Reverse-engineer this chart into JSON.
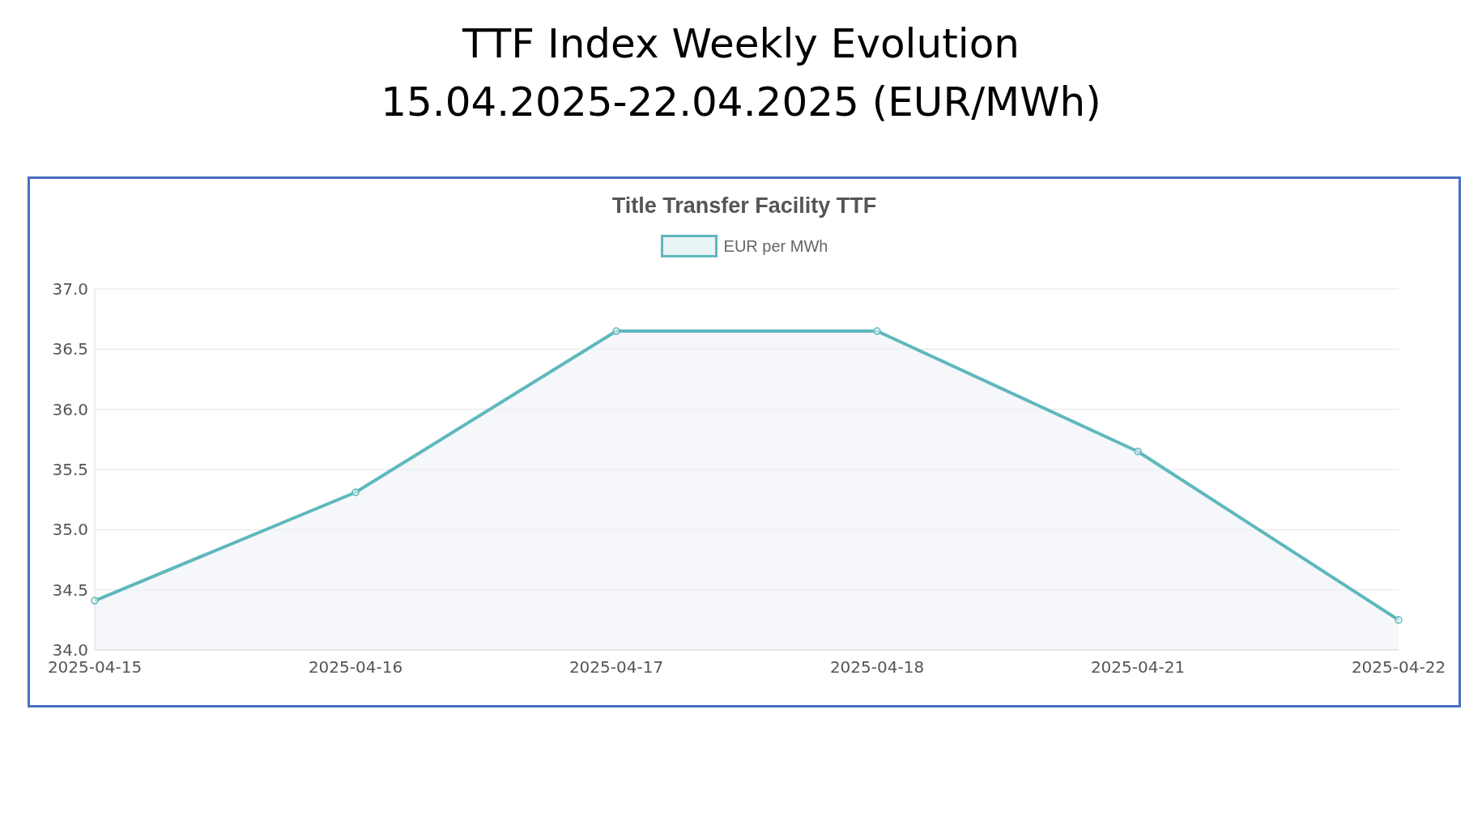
{
  "chart_data": {
    "type": "area",
    "title": "TTF Index Weekly Evolution\n15.04.2025-22.04.2025 (EUR/MWh)",
    "subtitle": "Title Transfer Facility TTF",
    "categories": [
      "2025-04-15",
      "2025-04-16",
      "2025-04-17",
      "2025-04-18",
      "2025-04-21",
      "2025-04-22"
    ],
    "series": [
      {
        "name": "EUR per MWh",
        "color": "#5fb8bd",
        "values": [
          34.41,
          35.31,
          36.65,
          36.65,
          35.65,
          34.25
        ]
      }
    ],
    "ylim": [
      34.0,
      37.0
    ],
    "yticks": [
      {
        "value": 34,
        "label": "34.0"
      },
      {
        "value": 34.5,
        "label": "34.5"
      },
      {
        "value": 35,
        "label": "35.0"
      },
      {
        "value": 35.5,
        "label": "35.5"
      },
      {
        "value": 36,
        "label": "36.0"
      },
      {
        "value": 36.5,
        "label": "36.5"
      },
      {
        "value": 37,
        "label": "37.0"
      }
    ],
    "grid": "y",
    "legend": "top",
    "marker": "circle"
  }
}
